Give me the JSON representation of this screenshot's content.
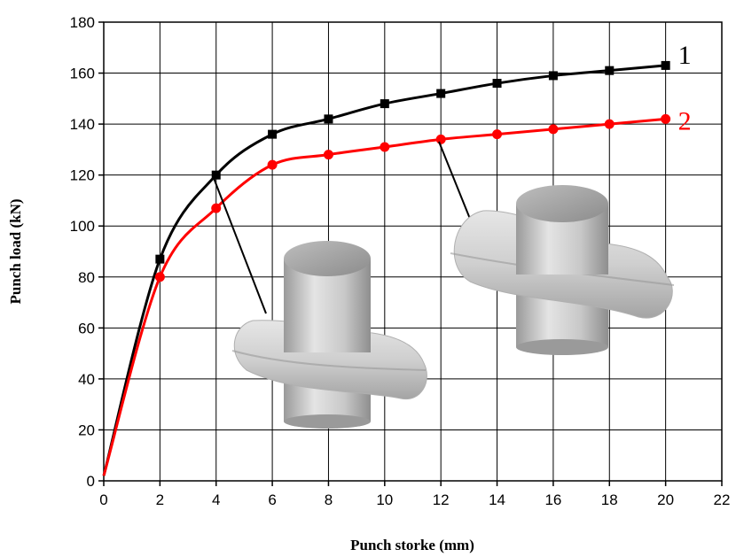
{
  "chart_data": {
    "type": "line",
    "xlabel": "Punch storke (mm)",
    "ylabel": "Punch load (kN)",
    "xlim": [
      0,
      22
    ],
    "ylim": [
      0,
      180
    ],
    "x_ticks": [
      "0",
      "2",
      "4",
      "6",
      "8",
      "10",
      "12",
      "14",
      "16",
      "18",
      "20",
      "22"
    ],
    "y_ticks": [
      "0",
      "20",
      "40",
      "60",
      "80",
      "100",
      "120",
      "140",
      "160",
      "180"
    ],
    "grid": true,
    "series": [
      {
        "name": "1",
        "color": "#000000",
        "marker": "square",
        "x": [
          0,
          2,
          4,
          6,
          8,
          10,
          12,
          14,
          16,
          18,
          20
        ],
        "y": [
          2,
          87,
          120,
          136,
          142,
          148,
          152,
          156,
          159,
          161,
          163
        ]
      },
      {
        "name": "2",
        "color": "#ff0000",
        "marker": "circle",
        "x": [
          0,
          2,
          4,
          6,
          8,
          10,
          12,
          14,
          16,
          18,
          20
        ],
        "y": [
          2,
          80,
          107,
          124,
          128,
          131,
          134,
          136,
          138,
          140,
          142
        ]
      }
    ],
    "annotations": [
      {
        "target_series": "1",
        "x": 4,
        "y": 120,
        "depicts": "preform with thin flash"
      },
      {
        "target_series": "2",
        "x": 12,
        "y": 134,
        "depicts": "preform with thick flash"
      }
    ]
  }
}
